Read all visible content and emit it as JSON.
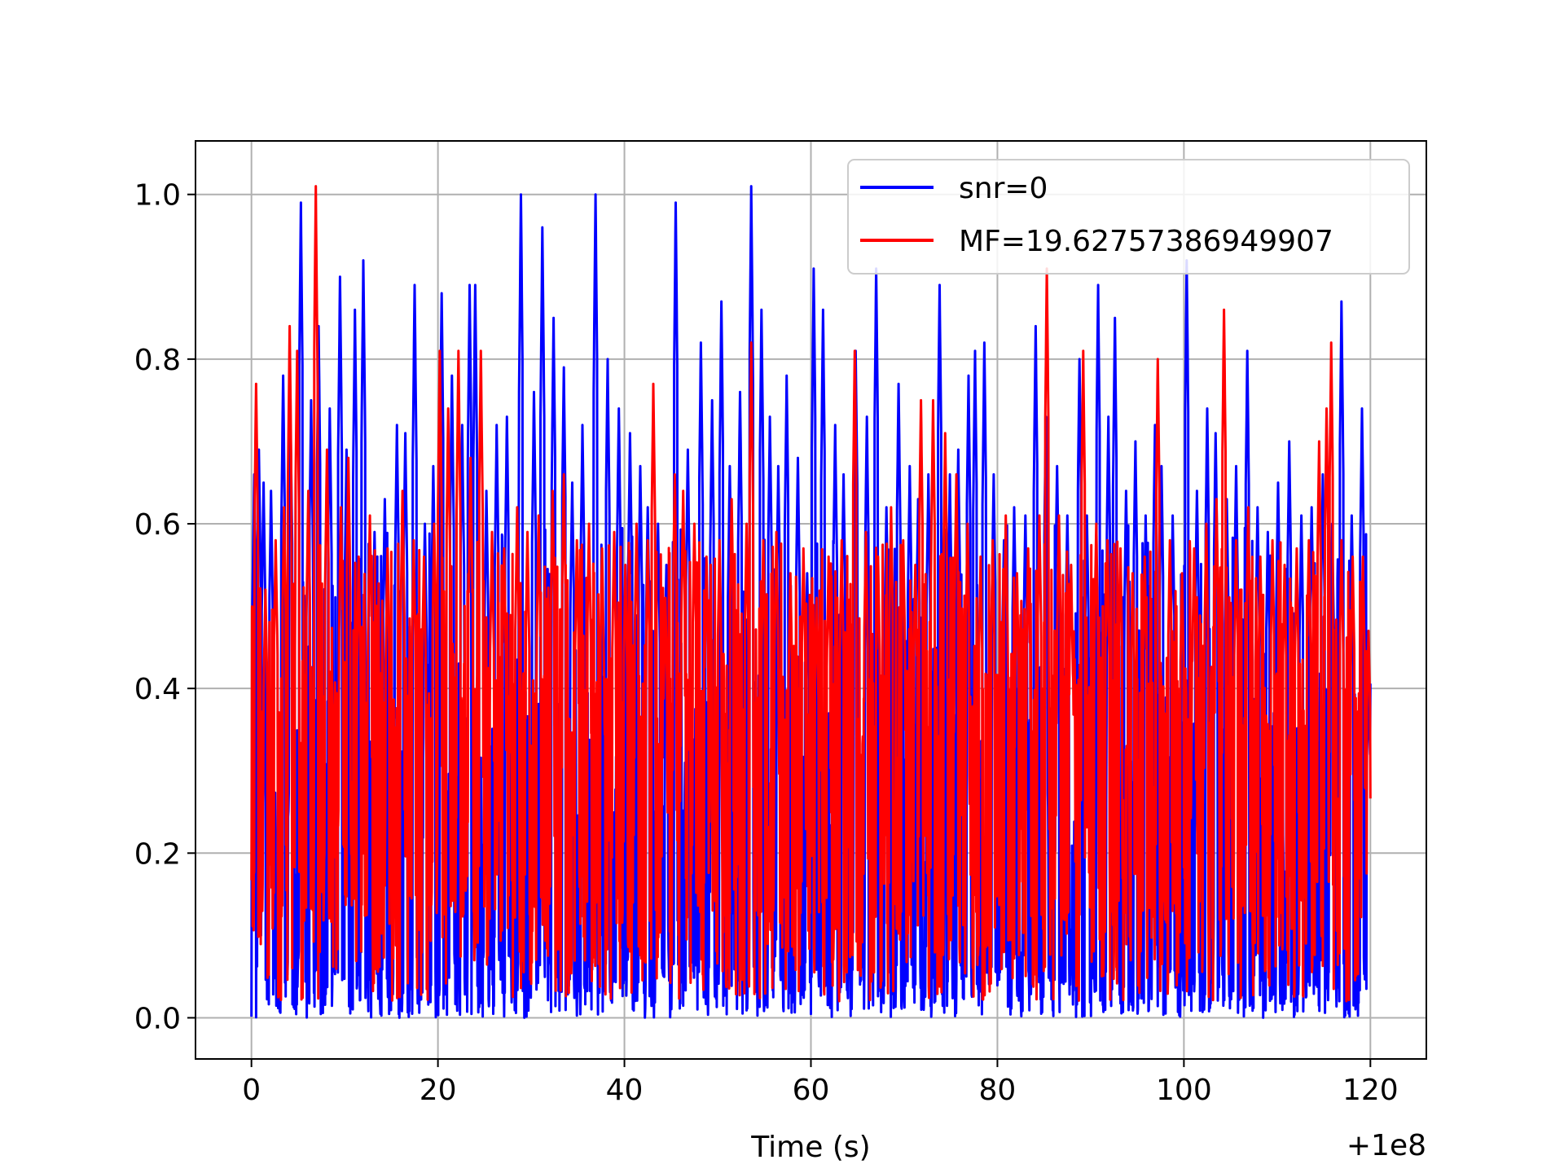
{
  "chart_data": {
    "type": "line",
    "title": "",
    "xlabel": "Time (s)",
    "ylabel": "",
    "x_offset_label": "+1e8",
    "xlim": [
      -6,
      126
    ],
    "ylim": [
      -0.05,
      1.065
    ],
    "x_ticks": [
      0,
      20,
      40,
      60,
      80,
      100,
      120
    ],
    "x_tick_labels": [
      "0",
      "20",
      "40",
      "60",
      "80",
      "100",
      "120"
    ],
    "y_ticks": [
      0.0,
      0.2,
      0.4,
      0.6,
      0.8,
      1.0
    ],
    "y_tick_labels": [
      "0.0",
      "0.2",
      "0.4",
      "0.6",
      "0.8",
      "1.0"
    ],
    "grid": true,
    "legend_position": "top-right",
    "series": [
      {
        "name": "snr=0",
        "color": "#0000ff",
        "x_range": [
          0,
          120
        ],
        "peaks": [
          [
            0.3,
            0.66
          ],
          [
            0.8,
            0.69
          ],
          [
            1.3,
            0.65
          ],
          [
            2.1,
            0.64
          ],
          [
            3.4,
            0.78
          ],
          [
            4.2,
            0.72
          ],
          [
            5.3,
            0.99
          ],
          [
            6.4,
            0.75
          ],
          [
            7.2,
            0.84
          ],
          [
            8.4,
            0.74
          ],
          [
            9.5,
            0.9
          ],
          [
            10.2,
            0.69
          ],
          [
            11.1,
            0.86
          ],
          [
            12.0,
            0.92
          ],
          [
            13.2,
            0.59
          ],
          [
            14.3,
            0.63
          ],
          [
            15.6,
            0.72
          ],
          [
            16.5,
            0.71
          ],
          [
            17.5,
            0.89
          ],
          [
            18.6,
            0.6
          ],
          [
            19.5,
            0.67
          ],
          [
            20.4,
            0.88
          ],
          [
            21.5,
            0.78
          ],
          [
            22.6,
            0.72
          ],
          [
            23.4,
            0.89
          ],
          [
            24.0,
            0.89
          ],
          [
            25.2,
            0.64
          ],
          [
            26.3,
            0.72
          ],
          [
            27.4,
            0.73
          ],
          [
            28.9,
            1.0
          ],
          [
            30.3,
            0.76
          ],
          [
            31.2,
            0.96
          ],
          [
            32.4,
            0.85
          ],
          [
            33.5,
            0.79
          ],
          [
            34.4,
            0.65
          ],
          [
            35.5,
            0.72
          ],
          [
            36.9,
            1.0
          ],
          [
            38.2,
            0.8
          ],
          [
            39.4,
            0.74
          ],
          [
            40.6,
            0.71
          ],
          [
            41.7,
            0.67
          ],
          [
            42.5,
            0.62
          ],
          [
            43.6,
            0.6
          ],
          [
            44.5,
            0.55
          ],
          [
            45.5,
            0.99
          ],
          [
            46.8,
            0.69
          ],
          [
            48.2,
            0.82
          ],
          [
            49.4,
            0.75
          ],
          [
            50.4,
            0.87
          ],
          [
            51.3,
            0.67
          ],
          [
            52.4,
            0.76
          ],
          [
            53.6,
            1.01
          ],
          [
            54.7,
            0.86
          ],
          [
            55.6,
            0.73
          ],
          [
            56.5,
            0.67
          ],
          [
            57.4,
            0.78
          ],
          [
            58.6,
            0.68
          ],
          [
            59.6,
            0.54
          ],
          [
            60.3,
            0.91
          ],
          [
            61.3,
            0.86
          ],
          [
            62.6,
            0.72
          ],
          [
            63.5,
            0.66
          ],
          [
            64.8,
            0.81
          ],
          [
            66.0,
            0.73
          ],
          [
            67.0,
            0.91
          ],
          [
            68.1,
            0.62
          ],
          [
            69.4,
            0.77
          ],
          [
            70.6,
            0.67
          ],
          [
            71.5,
            0.63
          ],
          [
            72.6,
            0.66
          ],
          [
            73.8,
            0.89
          ],
          [
            74.9,
            0.66
          ],
          [
            75.8,
            0.69
          ],
          [
            76.9,
            0.78
          ],
          [
            77.6,
            0.81
          ],
          [
            78.6,
            0.82
          ],
          [
            79.6,
            0.66
          ],
          [
            80.7,
            0.58
          ],
          [
            81.8,
            0.62
          ],
          [
            83.0,
            0.61
          ],
          [
            84.1,
            0.84
          ],
          [
            85.2,
            0.73
          ],
          [
            86.4,
            0.67
          ],
          [
            87.5,
            0.61
          ],
          [
            88.8,
            0.8
          ],
          [
            89.6,
            0.61
          ],
          [
            90.8,
            0.89
          ],
          [
            91.9,
            0.73
          ],
          [
            92.6,
            0.85
          ],
          [
            93.8,
            0.64
          ],
          [
            94.8,
            0.7
          ],
          [
            95.9,
            0.61
          ],
          [
            96.9,
            0.72
          ],
          [
            97.6,
            0.67
          ],
          [
            98.8,
            0.61
          ],
          [
            100.3,
            0.92
          ],
          [
            101.4,
            0.64
          ],
          [
            102.5,
            0.74
          ],
          [
            103.4,
            0.71
          ],
          [
            104.6,
            0.63
          ],
          [
            105.6,
            0.67
          ],
          [
            106.8,
            0.81
          ],
          [
            107.9,
            0.62
          ],
          [
            109.0,
            0.59
          ],
          [
            110.1,
            0.65
          ],
          [
            111.3,
            0.7
          ],
          [
            112.6,
            0.61
          ],
          [
            113.7,
            0.62
          ],
          [
            114.9,
            0.66
          ],
          [
            115.9,
            0.6
          ],
          [
            116.9,
            0.87
          ],
          [
            118.0,
            0.61
          ],
          [
            119.1,
            0.74
          ],
          [
            119.8,
            0.4
          ]
        ]
      },
      {
        "name": "MF=19.62757386949907",
        "color": "#ff0000",
        "x_range": [
          0,
          120
        ],
        "peaks": [
          [
            0.5,
            0.77
          ],
          [
            1.5,
            0.52
          ],
          [
            2.6,
            0.58
          ],
          [
            3.5,
            0.62
          ],
          [
            4.1,
            0.84
          ],
          [
            4.9,
            0.81
          ],
          [
            6.1,
            0.64
          ],
          [
            6.9,
            1.01
          ],
          [
            8.1,
            0.69
          ],
          [
            9.6,
            0.62
          ],
          [
            10.4,
            0.68
          ],
          [
            11.5,
            0.56
          ],
          [
            12.7,
            0.61
          ],
          [
            14.6,
            0.57
          ],
          [
            16.2,
            0.64
          ],
          [
            17.4,
            0.58
          ],
          [
            18.5,
            0.56
          ],
          [
            19.6,
            0.6
          ],
          [
            20.2,
            0.81
          ],
          [
            21.1,
            0.74
          ],
          [
            22.2,
            0.81
          ],
          [
            23.5,
            0.68
          ],
          [
            24.6,
            0.81
          ],
          [
            25.8,
            0.59
          ],
          [
            27.1,
            0.57
          ],
          [
            28.5,
            0.62
          ],
          [
            29.6,
            0.59
          ],
          [
            30.8,
            0.61
          ],
          [
            32.3,
            0.64
          ],
          [
            33.5,
            0.66
          ],
          [
            34.9,
            0.58
          ],
          [
            36.2,
            0.6
          ],
          [
            37.6,
            0.57
          ],
          [
            38.9,
            0.59
          ],
          [
            40.1,
            0.55
          ],
          [
            41.3,
            0.6
          ],
          [
            42.5,
            0.58
          ],
          [
            43.1,
            0.77
          ],
          [
            44.4,
            0.51
          ],
          [
            45.4,
            0.66
          ],
          [
            46.3,
            0.64
          ],
          [
            47.5,
            0.6
          ],
          [
            48.8,
            0.56
          ],
          [
            50.2,
            0.58
          ],
          [
            51.5,
            0.63
          ],
          [
            53.1,
            0.6
          ],
          [
            53.6,
            0.82
          ],
          [
            54.9,
            0.58
          ],
          [
            56.3,
            0.59
          ],
          [
            57.8,
            0.54
          ],
          [
            59.2,
            0.57
          ],
          [
            60.6,
            0.51
          ],
          [
            61.9,
            0.56
          ],
          [
            63.3,
            0.58
          ],
          [
            64.7,
            0.81
          ],
          [
            65.9,
            0.59
          ],
          [
            67.2,
            0.56
          ],
          [
            68.6,
            0.62
          ],
          [
            69.9,
            0.58
          ],
          [
            71.2,
            0.55
          ],
          [
            71.8,
            0.75
          ],
          [
            73.1,
            0.75
          ],
          [
            74.4,
            0.71
          ],
          [
            75.6,
            0.66
          ],
          [
            76.8,
            0.6
          ],
          [
            78.2,
            0.56
          ],
          [
            79.5,
            0.58
          ],
          [
            80.9,
            0.61
          ],
          [
            82.1,
            0.54
          ],
          [
            83.3,
            0.57
          ],
          [
            84.5,
            0.61
          ],
          [
            85.3,
            0.91
          ],
          [
            86.6,
            0.61
          ],
          [
            87.9,
            0.55
          ],
          [
            89.2,
            0.81
          ],
          [
            90.6,
            0.6
          ],
          [
            91.8,
            0.58
          ],
          [
            93.2,
            0.57
          ],
          [
            94.5,
            0.54
          ],
          [
            95.8,
            0.56
          ],
          [
            97.2,
            0.8
          ],
          [
            98.5,
            0.58
          ],
          [
            99.8,
            0.54
          ],
          [
            101.1,
            0.57
          ],
          [
            102.4,
            0.6
          ],
          [
            103.5,
            0.63
          ],
          [
            104.3,
            0.86
          ],
          [
            105.6,
            0.58
          ],
          [
            106.9,
            0.62
          ],
          [
            108.2,
            0.56
          ],
          [
            109.5,
            0.58
          ],
          [
            110.8,
            0.55
          ],
          [
            112.1,
            0.57
          ],
          [
            113.4,
            0.58
          ],
          [
            114.5,
            0.7
          ],
          [
            115.3,
            0.74
          ],
          [
            115.8,
            0.82
          ],
          [
            116.9,
            0.58
          ],
          [
            118.1,
            0.56
          ],
          [
            119.2,
            0.56
          ],
          [
            119.8,
            0.47
          ]
        ]
      }
    ]
  }
}
